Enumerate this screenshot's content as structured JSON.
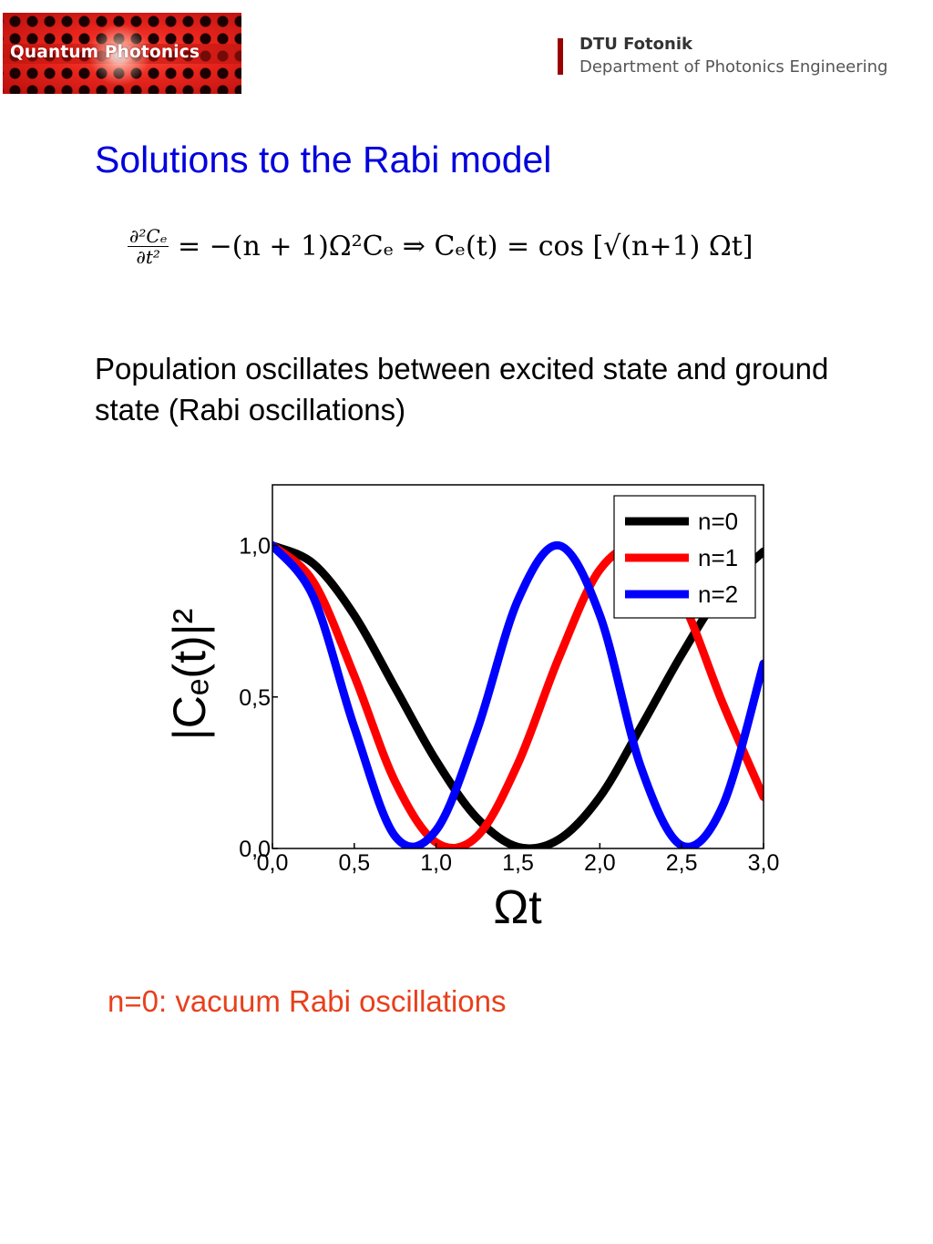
{
  "header": {
    "logo_text": "Quantum Photonics",
    "org_name": "DTU Fotonik",
    "org_department": "Department of Photonics Engineering",
    "accent_color": "#990000"
  },
  "slide": {
    "title": "Solutions to the Rabi model",
    "equation_lhs_num": "∂²Cₑ",
    "equation_lhs_den": "∂t²",
    "equation_rhs": "= −(n + 1)Ω²Cₑ    ⇒   Cₑ(t) = cos [√(n+1) Ωt]",
    "body": "Population oscillates between excited state and ground state (Rabi oscillations)",
    "note": "n=0: vacuum Rabi oscillations",
    "title_color": "#0000dd",
    "note_color": "#e8401c"
  },
  "chart_data": {
    "type": "line",
    "title": "",
    "xlabel": "Ωt",
    "ylabel": "|Cₑ(t)|²",
    "xlim": [
      0,
      3
    ],
    "ylim": [
      0,
      1.2
    ],
    "xticks": [
      "0,0",
      "0,5",
      "1,0",
      "1,5",
      "2,0",
      "2,5",
      "3,0"
    ],
    "xtick_values": [
      0,
      0.5,
      1,
      1.5,
      2,
      2.5,
      3
    ],
    "yticks": [
      "0,0",
      "0,5",
      "1,0"
    ],
    "ytick_values": [
      0,
      0.5,
      1
    ],
    "grid": false,
    "legend": "top-right",
    "series": [
      {
        "name": "n=0",
        "color": "#000000",
        "x": [
          0,
          0.25,
          0.5,
          0.75,
          1.0,
          1.25,
          1.5,
          1.75,
          2.0,
          2.25,
          2.5,
          2.75,
          3.0
        ],
        "y": [
          1.0,
          0.94,
          0.77,
          0.53,
          0.29,
          0.1,
          0.005,
          0.03,
          0.17,
          0.4,
          0.64,
          0.85,
          0.98
        ]
      },
      {
        "name": "n=1",
        "color": "#ff0000",
        "x": [
          0,
          0.25,
          0.5,
          0.75,
          1.0,
          1.25,
          1.5,
          1.75,
          2.0,
          2.25,
          2.5,
          2.75,
          3.0
        ],
        "y": [
          1.0,
          0.88,
          0.57,
          0.22,
          0.02,
          0.04,
          0.28,
          0.63,
          0.92,
          0.99,
          0.82,
          0.48,
          0.17
        ]
      },
      {
        "name": "n=2",
        "color": "#0000ff",
        "x": [
          0,
          0.25,
          0.5,
          0.75,
          1.0,
          1.25,
          1.5,
          1.75,
          2.0,
          2.25,
          2.5,
          2.75,
          3.0
        ],
        "y": [
          1.0,
          0.83,
          0.4,
          0.04,
          0.06,
          0.39,
          0.82,
          1.0,
          0.77,
          0.27,
          0.01,
          0.14,
          0.61
        ]
      }
    ]
  }
}
